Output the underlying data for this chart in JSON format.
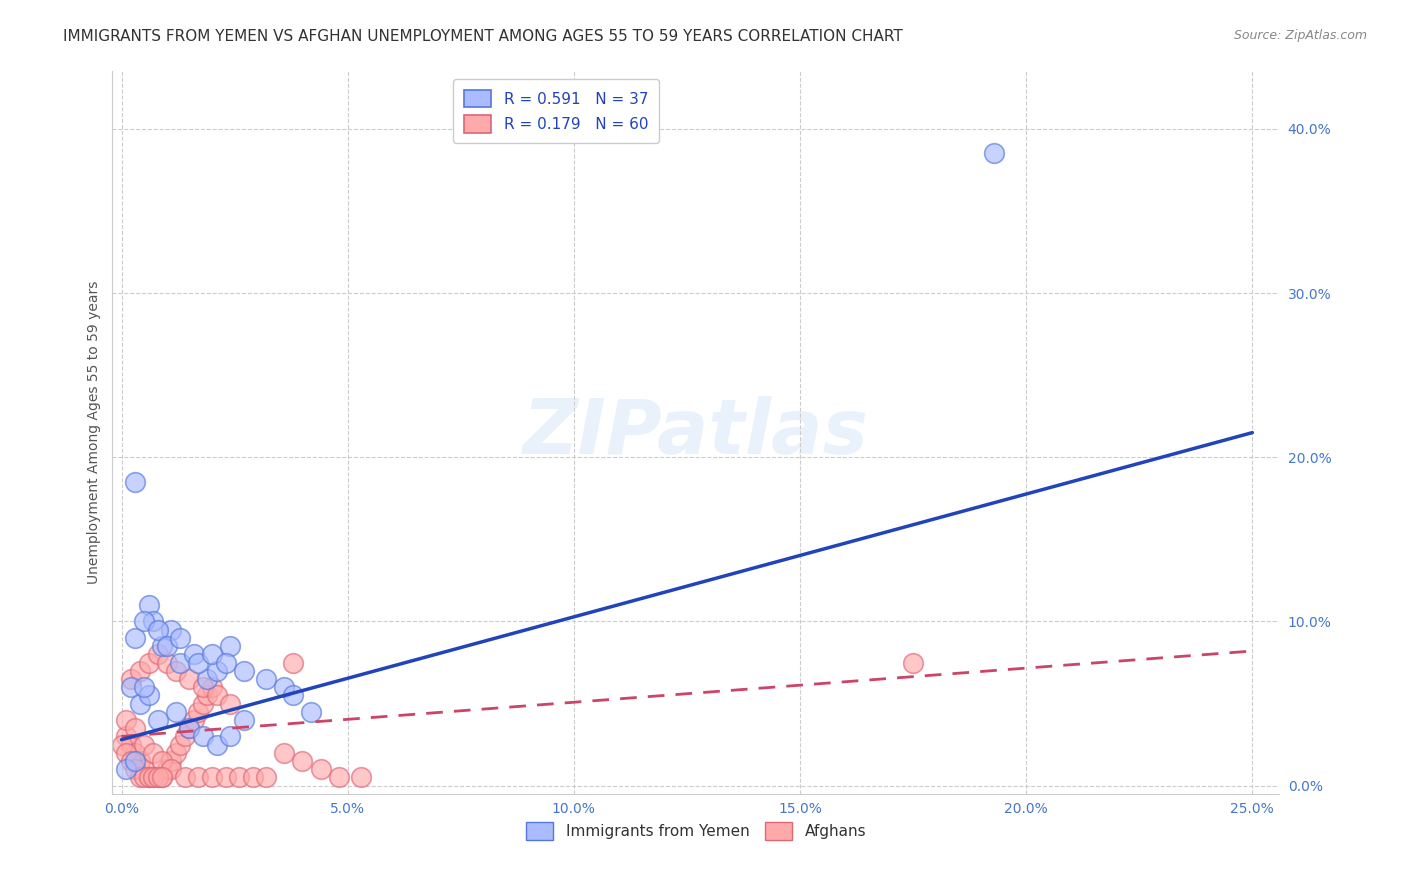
{
  "title": "IMMIGRANTS FROM YEMEN VS AFGHAN UNEMPLOYMENT AMONG AGES 55 TO 59 YEARS CORRELATION CHART",
  "source": "Source: ZipAtlas.com",
  "ylabel": "Unemployment Among Ages 55 to 59 years",
  "xlabel_ticks": [
    "0.0%",
    "5.0%",
    "10.0%",
    "15.0%",
    "20.0%",
    "25.0%"
  ],
  "xlabel_vals": [
    0.0,
    0.05,
    0.1,
    0.15,
    0.2,
    0.25
  ],
  "ylabel_ticks": [
    "0.0%",
    "10.0%",
    "20.0%",
    "30.0%",
    "40.0%"
  ],
  "ylabel_vals": [
    0.0,
    0.1,
    0.2,
    0.3,
    0.4
  ],
  "xlim": [
    -0.002,
    0.256
  ],
  "ylim": [
    -0.005,
    0.435
  ],
  "legend1_label": "R = 0.591   N = 37",
  "legend2_label": "R = 0.179   N = 60",
  "legend1_rect_color": "#aabbff",
  "legend1_edge_color": "#5577dd",
  "legend2_rect_color": "#ffaaaa",
  "legend2_edge_color": "#dd6677",
  "scatter1_facecolor": "#aabbff",
  "scatter1_edgecolor": "#5577dd",
  "scatter2_facecolor": "#ffaaaa",
  "scatter2_edgecolor": "#dd6677",
  "line1_color": "#2244bb",
  "line2_color": "#cc4466",
  "watermark": "ZIPatlas",
  "background_color": "#ffffff",
  "grid_color": "#cccccc",
  "blue_line_x0": 0.0,
  "blue_line_y0": 0.028,
  "blue_line_x1": 0.25,
  "blue_line_y1": 0.215,
  "pink_line_x0": 0.0,
  "pink_line_y0": 0.03,
  "pink_line_x1": 0.25,
  "pink_line_y1": 0.082,
  "blue_scatter_x": [
    0.003,
    0.006,
    0.007,
    0.009,
    0.011,
    0.013,
    0.016,
    0.019,
    0.021,
    0.024,
    0.002,
    0.004,
    0.006,
    0.008,
    0.012,
    0.015,
    0.018,
    0.021,
    0.024,
    0.027,
    0.005,
    0.008,
    0.01,
    0.013,
    0.017,
    0.02,
    0.023,
    0.027,
    0.032,
    0.036,
    0.038,
    0.042,
    0.001,
    0.003,
    0.005,
    0.193,
    0.003
  ],
  "blue_scatter_y": [
    0.09,
    0.11,
    0.1,
    0.085,
    0.095,
    0.075,
    0.08,
    0.065,
    0.07,
    0.085,
    0.06,
    0.05,
    0.055,
    0.04,
    0.045,
    0.035,
    0.03,
    0.025,
    0.03,
    0.04,
    0.1,
    0.095,
    0.085,
    0.09,
    0.075,
    0.08,
    0.075,
    0.07,
    0.065,
    0.06,
    0.055,
    0.045,
    0.01,
    0.015,
    0.06,
    0.385,
    0.185
  ],
  "pink_scatter_x": [
    0.001,
    0.002,
    0.003,
    0.004,
    0.005,
    0.006,
    0.007,
    0.008,
    0.009,
    0.01,
    0.011,
    0.012,
    0.013,
    0.014,
    0.015,
    0.016,
    0.017,
    0.018,
    0.019,
    0.02,
    0.002,
    0.004,
    0.006,
    0.008,
    0.01,
    0.012,
    0.015,
    0.018,
    0.021,
    0.024,
    0.001,
    0.003,
    0.005,
    0.007,
    0.009,
    0.011,
    0.014,
    0.017,
    0.02,
    0.023,
    0.026,
    0.029,
    0.032,
    0.036,
    0.04,
    0.044,
    0.048,
    0.053,
    0.038,
    0.175,
    0.0,
    0.001,
    0.002,
    0.003,
    0.004,
    0.005,
    0.006,
    0.007,
    0.008,
    0.009
  ],
  "pink_scatter_y": [
    0.03,
    0.025,
    0.02,
    0.015,
    0.01,
    0.005,
    0.005,
    0.005,
    0.005,
    0.01,
    0.015,
    0.02,
    0.025,
    0.03,
    0.035,
    0.04,
    0.045,
    0.05,
    0.055,
    0.06,
    0.065,
    0.07,
    0.075,
    0.08,
    0.075,
    0.07,
    0.065,
    0.06,
    0.055,
    0.05,
    0.04,
    0.035,
    0.025,
    0.02,
    0.015,
    0.01,
    0.005,
    0.005,
    0.005,
    0.005,
    0.005,
    0.005,
    0.005,
    0.02,
    0.015,
    0.01,
    0.005,
    0.005,
    0.075,
    0.075,
    0.025,
    0.02,
    0.015,
    0.01,
    0.005,
    0.005,
    0.005,
    0.005,
    0.005,
    0.005
  ],
  "title_fontsize": 11,
  "tick_fontsize": 10,
  "legend_fontsize": 11
}
